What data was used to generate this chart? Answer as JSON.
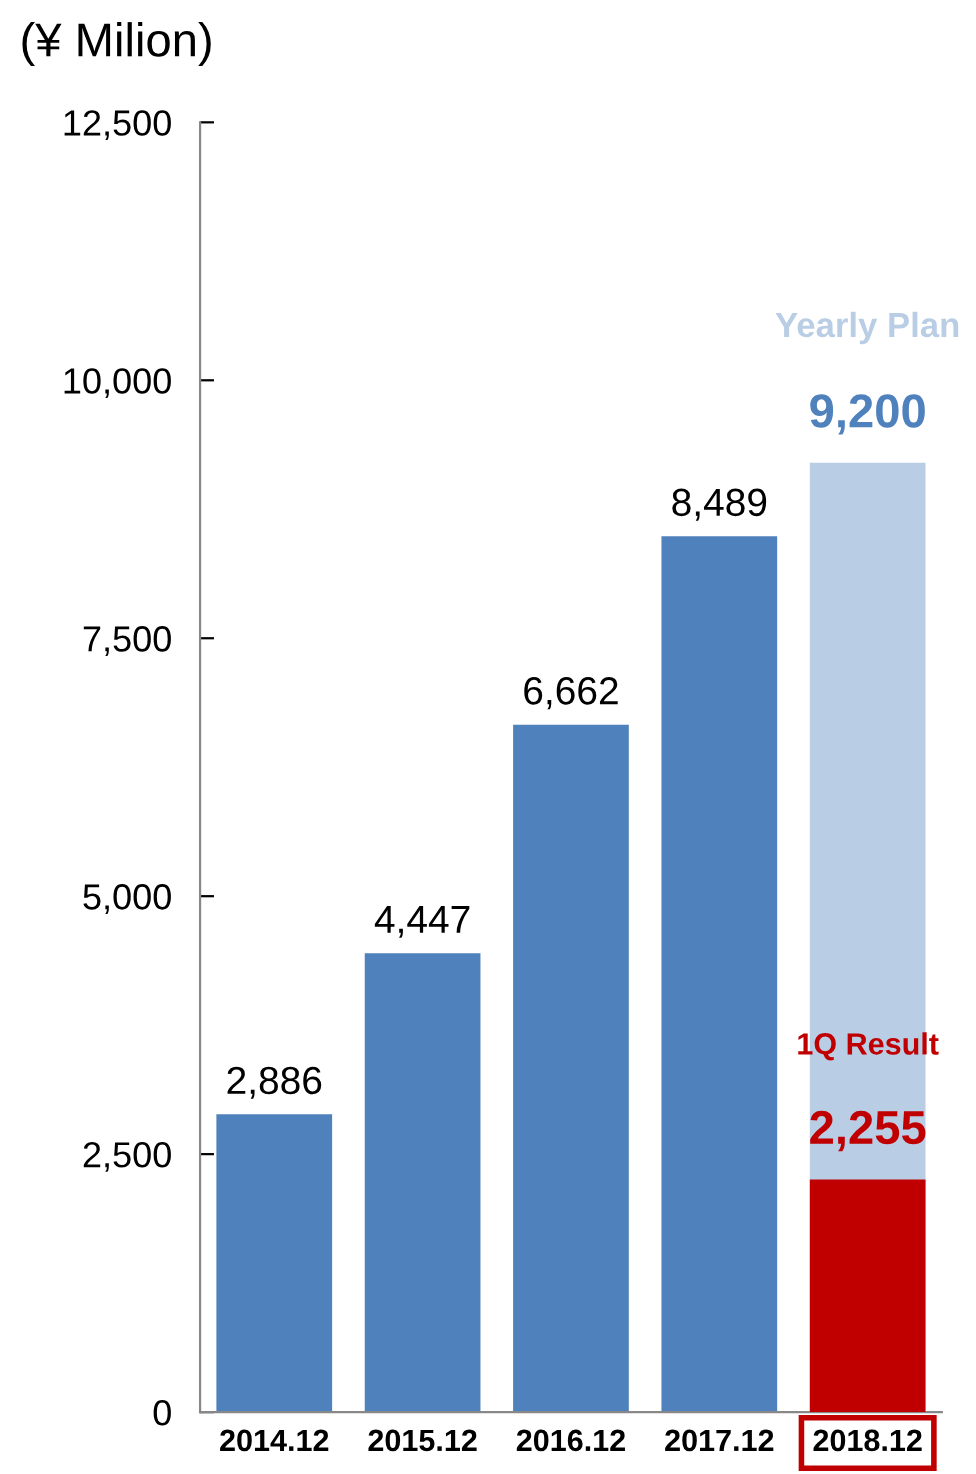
{
  "chart_data": {
    "type": "bar",
    "ylabel": "(¥ Milion)",
    "categories": [
      "2014.12",
      "2015.12",
      "2016.12",
      "2017.12",
      "2018.12"
    ],
    "series": [
      {
        "color": "#4f81bd",
        "values": [
          2886,
          4447,
          6662,
          8489,
          null
        ],
        "value_labels": [
          "2,886",
          "4,447",
          "6,662",
          "8,489",
          null
        ]
      },
      {
        "name": "Yearly Plan",
        "color": "#b9cde5",
        "values": [
          null,
          null,
          null,
          null,
          9200
        ],
        "value_labels": [
          null,
          null,
          null,
          null,
          "9,200"
        ]
      },
      {
        "name": "1Q Result",
        "color": "#c00000",
        "values": [
          null,
          null,
          null,
          null,
          2255
        ],
        "value_labels": [
          null,
          null,
          null,
          null,
          "2,255"
        ]
      }
    ],
    "ylim": [
      0,
      12500
    ],
    "yticks": [
      0,
      {
        "value": 2500,
        "label": "2,500"
      },
      {
        "value": 5000,
        "label": "5,000"
      },
      {
        "value": 7500,
        "label": "7,500"
      },
      {
        "value": 10000,
        "label": "10,000"
      },
      {
        "value": 12500,
        "label": "12,500"
      }
    ],
    "grid": false,
    "legend": false
  }
}
